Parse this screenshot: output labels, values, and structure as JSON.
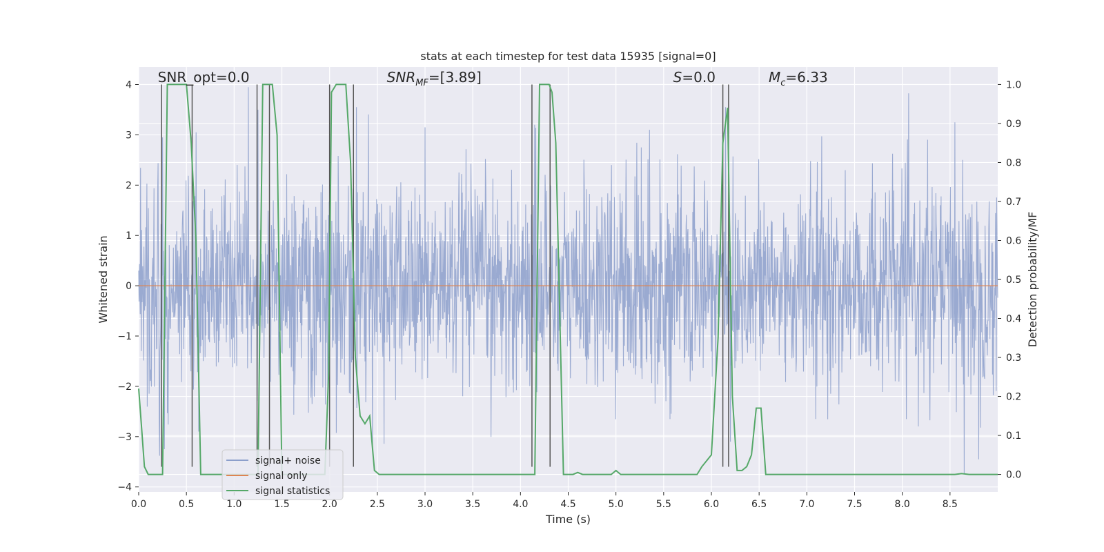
{
  "chart_data": {
    "type": "line",
    "title": "stats at each timestep for test data 15935 [signal=0]",
    "xlabel": "Time (s)",
    "ylabel": "Whitened strain",
    "y2label": "Detection probability/MF",
    "xlim": [
      0,
      9
    ],
    "ylim": [
      -4.1,
      4.35
    ],
    "y2lim": [
      -0.045,
      1.045
    ],
    "xticks": [
      0.0,
      0.5,
      1.0,
      1.5,
      2.0,
      2.5,
      3.0,
      3.5,
      4.0,
      4.5,
      5.0,
      5.5,
      6.0,
      6.5,
      7.0,
      7.5,
      8.0,
      8.5
    ],
    "xtick_labels": [
      "0.0",
      "0.5",
      "1.0",
      "1.5",
      "2.0",
      "2.5",
      "3.0",
      "3.5",
      "4.0",
      "4.5",
      "5.0",
      "5.5",
      "6.0",
      "6.5",
      "7.0",
      "7.5",
      "8.0",
      "8.5"
    ],
    "yticks": [
      -4,
      -3,
      -2,
      -1,
      0,
      1,
      2,
      3,
      4
    ],
    "ytick_labels": [
      "−4",
      "−3",
      "−2",
      "−1",
      "0",
      "1",
      "2",
      "3",
      "4"
    ],
    "y2ticks": [
      0.0,
      0.1,
      0.2,
      0.3,
      0.4,
      0.5,
      0.6,
      0.7,
      0.8,
      0.9,
      1.0
    ],
    "y2tick_labels": [
      "0.0",
      "0.1",
      "0.2",
      "0.3",
      "0.4",
      "0.5",
      "0.6",
      "0.7",
      "0.8",
      "0.9",
      "1.0"
    ],
    "grid": true,
    "annotations": [
      {
        "text": "SNR_opt=0.0",
        "x": 0.2,
        "y": 4.05
      },
      {
        "text": "SNR",
        "sub": "MF",
        "rest": "=[3.89]",
        "italic": true,
        "x": 2.6,
        "y": 4.05
      },
      {
        "text": "S",
        "rest": "=0.0",
        "italic": true,
        "x": 5.6,
        "y": 4.05
      },
      {
        "text": "M",
        "sub": "c",
        "rest": "=6.33",
        "italic": true,
        "x": 6.6,
        "y": 4.05
      }
    ],
    "legend": {
      "location": "lower-left",
      "entries": [
        {
          "label": "signal+ noise",
          "color": "#8c9fcb"
        },
        {
          "label": "signal only",
          "color": "#dd8452"
        },
        {
          "label": "signal statistics",
          "color": "#55a868"
        }
      ]
    },
    "series": [
      {
        "name": "signal+ noise",
        "kind": "noise",
        "color": "#8c9fcb",
        "sample_rate_hz": 256,
        "envelope_sigma": 1.0,
        "spike_peaks": [
          {
            "x": 0.25,
            "y": 2.95
          },
          {
            "x": 0.22,
            "y": -3.38
          },
          {
            "x": 0.27,
            "y": -3.25
          },
          {
            "x": 0.6,
            "y": 3.05
          },
          {
            "x": 0.63,
            "y": -2.9
          },
          {
            "x": 1.15,
            "y": 3.95
          },
          {
            "x": 1.25,
            "y": 3.5
          },
          {
            "x": 2.28,
            "y": 3.55
          },
          {
            "x": 2.45,
            "y": -3.27
          },
          {
            "x": 3.0,
            "y": 3.15
          },
          {
            "x": 4.15,
            "y": 3.2
          },
          {
            "x": 5.35,
            "y": 3.1
          },
          {
            "x": 6.15,
            "y": 3.55
          },
          {
            "x": 6.2,
            "y": -3.1
          },
          {
            "x": 8.55,
            "y": 3.25
          },
          {
            "x": 8.65,
            "y": -3.75
          },
          {
            "x": 8.8,
            "y": -3.45
          }
        ]
      },
      {
        "name": "signal only",
        "kind": "line",
        "color": "#dd8452",
        "x": [
          0.0,
          9.0
        ],
        "y": [
          0.0,
          0.0
        ]
      },
      {
        "name": "signal statistics",
        "kind": "line",
        "axis": "y2",
        "color": "#55a868",
        "x": [
          0.0,
          0.03,
          0.06,
          0.1,
          0.2,
          0.25,
          0.3,
          0.35,
          0.4,
          0.45,
          0.5,
          0.55,
          0.6,
          0.65,
          0.7,
          0.75,
          0.8,
          0.9,
          1.0,
          1.1,
          1.2,
          1.25,
          1.3,
          1.35,
          1.4,
          1.45,
          1.5,
          1.55,
          1.6,
          1.65,
          1.7,
          1.8,
          1.9,
          1.95,
          1.99,
          2.02,
          2.07,
          2.12,
          2.17,
          2.22,
          2.27,
          2.32,
          2.37,
          2.42,
          2.47,
          2.52,
          2.57,
          2.62,
          2.67,
          2.72,
          3.0,
          3.5,
          4.0,
          4.1,
          4.12,
          4.15,
          4.2,
          4.25,
          4.3,
          4.33,
          4.37,
          4.45,
          4.5,
          4.55,
          4.6,
          4.65,
          4.7,
          4.75,
          4.8,
          4.9,
          4.95,
          5.0,
          5.05,
          5.1,
          5.5,
          5.8,
          5.85,
          5.9,
          6.0,
          6.07,
          6.12,
          6.17,
          6.22,
          6.27,
          6.32,
          6.37,
          6.42,
          6.47,
          6.52,
          6.57,
          6.62,
          6.67,
          6.72,
          6.77,
          6.82,
          7.0,
          8.0,
          8.55,
          8.62,
          8.7,
          9.0
        ],
        "y": [
          0.22,
          0.12,
          0.02,
          0.0,
          0.0,
          0.0,
          1.0,
          1.0,
          1.0,
          1.0,
          1.0,
          0.85,
          0.6,
          0.0,
          0.0,
          0.0,
          0.0,
          0.0,
          0.0,
          0.0,
          0.0,
          0.0,
          1.0,
          1.0,
          1.0,
          0.87,
          0.0,
          0.0,
          0.0,
          0.0,
          0.0,
          0.0,
          0.0,
          0.0,
          0.26,
          0.98,
          1.0,
          1.0,
          1.0,
          0.8,
          0.3,
          0.15,
          0.13,
          0.15,
          0.01,
          0.0,
          0.0,
          0.0,
          0.0,
          0.0,
          0.0,
          0.0,
          0.0,
          0.0,
          0.0,
          0.0,
          1.0,
          1.0,
          1.0,
          0.98,
          0.85,
          0.0,
          0.0,
          0.0,
          0.005,
          0.0,
          0.0,
          0.0,
          0.0,
          0.0,
          0.0,
          0.01,
          0.0,
          0.0,
          0.0,
          0.0,
          0.0,
          0.02,
          0.05,
          0.35,
          0.85,
          0.94,
          0.2,
          0.01,
          0.01,
          0.02,
          0.05,
          0.17,
          0.17,
          0.0,
          0.0,
          0.0,
          0.0,
          0.0,
          0.0,
          0.0,
          0.0,
          0.0,
          0.002,
          0.0,
          0.0
        ]
      }
    ],
    "event_lines": {
      "color": "#555555",
      "x": [
        0.24,
        0.56,
        1.24,
        1.37,
        2.0,
        2.25,
        4.12,
        4.31,
        6.12,
        6.18
      ],
      "y_range": [
        -3.6,
        4.0
      ]
    }
  }
}
